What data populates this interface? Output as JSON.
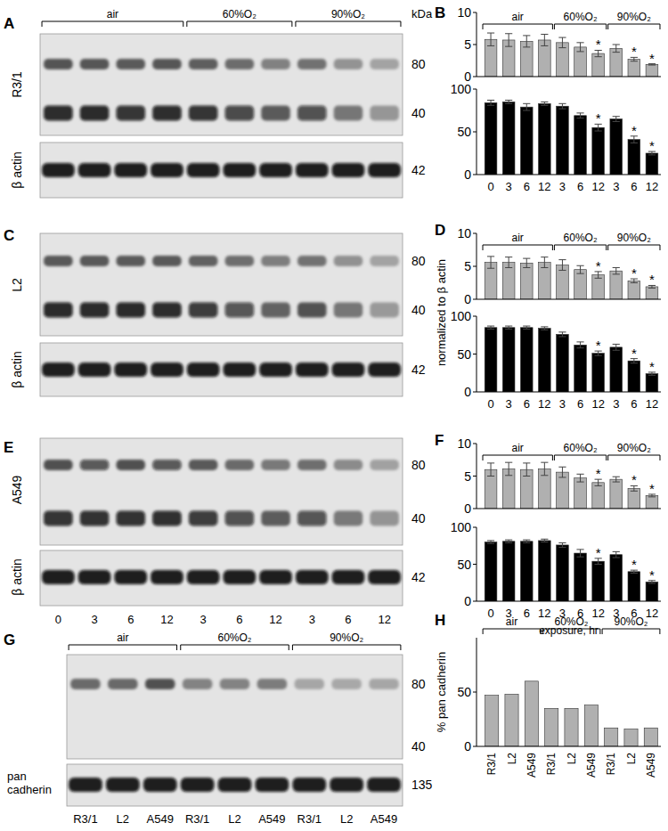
{
  "chart_data": [
    {
      "panel_label": "B",
      "type": "bar",
      "categories": [
        0,
        3,
        6,
        12,
        3,
        6,
        12,
        3,
        6,
        12
      ],
      "groups": [
        {
          "label": "air",
          "count": 4
        },
        {
          "label": "60%O₂",
          "count": 3
        },
        {
          "label": "90%O₂",
          "count": 3
        }
      ],
      "series": [
        {
          "color": "#b0b0b0",
          "values": [
            5.8,
            5.7,
            5.5,
            5.7,
            5.3,
            4.6,
            3.6,
            4.4,
            2.7,
            1.9
          ],
          "errors": [
            1.0,
            1.0,
            0.9,
            0.9,
            0.8,
            0.7,
            0.5,
            0.6,
            0.3,
            0.1
          ],
          "significance": [
            null,
            null,
            null,
            null,
            null,
            null,
            "*",
            null,
            "*",
            "*"
          ],
          "ylim": [
            0,
            10
          ],
          "yticks": [
            0,
            5,
            10
          ]
        },
        {
          "color": "#000000",
          "values": [
            84,
            85,
            79,
            83,
            80,
            69,
            55,
            65,
            41,
            25
          ],
          "errors": [
            3,
            2,
            4,
            2,
            3,
            3,
            4,
            3,
            4,
            2
          ],
          "significance": [
            null,
            null,
            null,
            null,
            null,
            null,
            "*",
            null,
            "*",
            "*"
          ],
          "ylim": [
            0,
            100
          ],
          "yticks": [
            0,
            50,
            100
          ]
        }
      ]
    },
    {
      "panel_label": "D",
      "type": "bar",
      "ylabel": "normalized to β actin",
      "categories": [
        0,
        3,
        6,
        12,
        3,
        6,
        12,
        3,
        6,
        12
      ],
      "groups": [
        {
          "label": "air",
          "count": 4
        },
        {
          "label": "60%O₂",
          "count": 3
        },
        {
          "label": "90%O₂",
          "count": 3
        }
      ],
      "series": [
        {
          "color": "#b0b0b0",
          "values": [
            5.6,
            5.6,
            5.5,
            5.6,
            5.2,
            4.5,
            3.7,
            4.3,
            2.8,
            1.9
          ],
          "errors": [
            0.9,
            0.8,
            0.7,
            0.8,
            0.8,
            0.6,
            0.5,
            0.5,
            0.3,
            0.2
          ],
          "significance": [
            null,
            null,
            null,
            null,
            null,
            null,
            "*",
            null,
            "*",
            "*"
          ],
          "ylim": [
            0,
            10
          ],
          "yticks": [
            0,
            5,
            10
          ]
        },
        {
          "color": "#000000",
          "values": [
            85,
            85,
            85,
            84,
            76,
            62,
            51,
            59,
            41,
            24
          ],
          "errors": [
            2,
            2,
            2,
            2,
            3,
            4,
            3,
            4,
            3,
            2
          ],
          "significance": [
            null,
            null,
            null,
            null,
            null,
            null,
            "*",
            null,
            "*",
            "*"
          ],
          "ylim": [
            0,
            100
          ],
          "yticks": [
            0,
            50,
            100
          ]
        }
      ]
    },
    {
      "panel_label": "F",
      "type": "bar",
      "xlabel": "exposure, hr",
      "categories": [
        0,
        3,
        6,
        12,
        3,
        6,
        12,
        3,
        6,
        12
      ],
      "groups": [
        {
          "label": "air",
          "count": 4
        },
        {
          "label": "60%O₂",
          "count": 3
        },
        {
          "label": "90%O₂",
          "count": 3
        }
      ],
      "series": [
        {
          "color": "#b0b0b0",
          "values": [
            6.0,
            6.1,
            6.0,
            6.1,
            5.6,
            4.7,
            4.0,
            4.5,
            3.1,
            2.0
          ],
          "errors": [
            1.0,
            1.0,
            1.0,
            1.0,
            0.8,
            0.6,
            0.5,
            0.4,
            0.4,
            0.2
          ],
          "significance": [
            null,
            null,
            null,
            null,
            null,
            null,
            "*",
            null,
            "*",
            "*"
          ],
          "ylim": [
            0,
            10
          ],
          "yticks": [
            0,
            5,
            10
          ]
        },
        {
          "color": "#000000",
          "values": [
            80,
            81,
            81,
            82,
            76,
            65,
            54,
            63,
            40,
            26
          ],
          "errors": [
            2,
            2,
            2,
            2,
            3,
            5,
            4,
            4,
            2,
            2
          ],
          "significance": [
            null,
            null,
            null,
            null,
            null,
            null,
            "*",
            null,
            "*",
            "*"
          ],
          "ylim": [
            0,
            100
          ],
          "yticks": [
            0,
            50,
            100
          ]
        }
      ]
    },
    {
      "panel_label": "H",
      "type": "bar",
      "ylabel": "% pan cadherin",
      "categories": [
        "R3/1",
        "L2",
        "A549",
        "R3/1",
        "L2",
        "A549",
        "R3/1",
        "L2",
        "A549"
      ],
      "groups": [
        {
          "label": "air",
          "count": 3
        },
        {
          "label": "60%O₂",
          "count": 3
        },
        {
          "label": "90%O₂",
          "count": 3
        }
      ],
      "series": [
        {
          "color": "#b0b0b0",
          "values": [
            47,
            48,
            60,
            35,
            35,
            38,
            17,
            16,
            17
          ],
          "ylim": [
            0,
            100
          ],
          "yticks": [
            0,
            50
          ]
        }
      ]
    }
  ],
  "blots": [
    {
      "panel_label": "A",
      "side_label": "R3/1",
      "unit": "kDa",
      "groups": [
        {
          "label": "air",
          "count": 4
        },
        {
          "label": "60%O₂",
          "count": 3
        },
        {
          "label": "90%O₂",
          "count": 3
        }
      ],
      "markers": [
        80,
        40
      ],
      "loading_control": {
        "label": "β actin",
        "marker": 42
      }
    },
    {
      "panel_label": "C",
      "side_label": "L2",
      "markers": [
        80,
        40
      ],
      "loading_control": {
        "label": "β actin",
        "marker": 42
      }
    },
    {
      "panel_label": "E",
      "side_label": "A549",
      "markers": [
        80,
        40
      ],
      "loading_control": {
        "label": "β actin",
        "marker": 42
      },
      "lane_labels": [
        0,
        3,
        6,
        12,
        3,
        6,
        12,
        3,
        6,
        12
      ]
    },
    {
      "panel_label": "G",
      "groups": [
        {
          "label": "air",
          "count": 3
        },
        {
          "label": "60%O₂",
          "count": 3
        },
        {
          "label": "90%O₂",
          "count": 3
        }
      ],
      "markers": [
        80,
        40
      ],
      "loading_control": {
        "label": "pan cadherin",
        "marker": 135
      },
      "lane_labels": [
        "R3/1",
        "L2",
        "A549",
        "R3/1",
        "L2",
        "A549",
        "R3/1",
        "L2",
        "A549"
      ]
    }
  ]
}
